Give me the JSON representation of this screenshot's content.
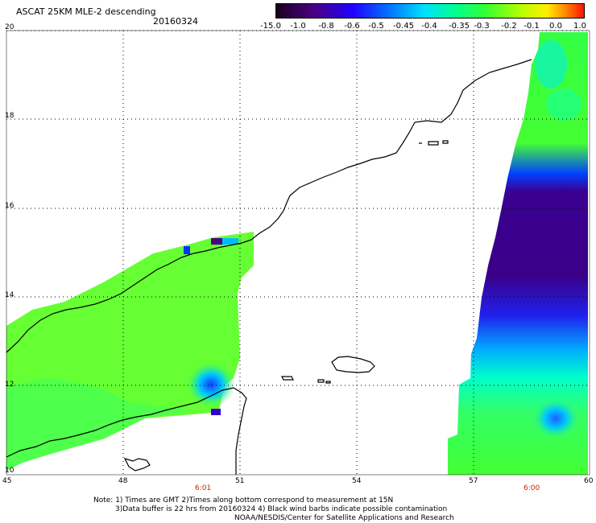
{
  "header": {
    "title": "ASCAT 25KM MLE-2 descending",
    "date": "20160324"
  },
  "colorbar": {
    "labels": [
      "-15.0",
      "-1.0",
      "-0.8",
      "-0.6",
      "-0.5",
      "-0.45",
      "-0.4",
      "-0.35",
      "-0.3",
      "-0.2",
      "-0.1",
      "0.0",
      "1.0"
    ],
    "colors": [
      "#2a0033",
      "#4a0080",
      "#3300cc",
      "#0000ff",
      "#0077ff",
      "#00ccff",
      "#00ffe0",
      "#00ff80",
      "#33ff33",
      "#99ff00",
      "#ffff00",
      "#ff8800",
      "#ff0000"
    ]
  },
  "axes": {
    "x_ticks": [
      "45",
      "48",
      "51",
      "54",
      "57",
      "60"
    ],
    "y_ticks": [
      "20",
      "18",
      "16",
      "14",
      "12",
      "10"
    ]
  },
  "times": {
    "left": "6:01",
    "right": "6:00"
  },
  "note": {
    "line1": "Note: 1) Times are GMT 2)Times along bottom correspond to measurement at 15N",
    "line2": "3)Data buffer is 22 hrs from 20160324 4) Black wind barbs indicate possible contamination",
    "line3": "NOAA/NESDIS/Center for Satellite Applications and Research"
  }
}
